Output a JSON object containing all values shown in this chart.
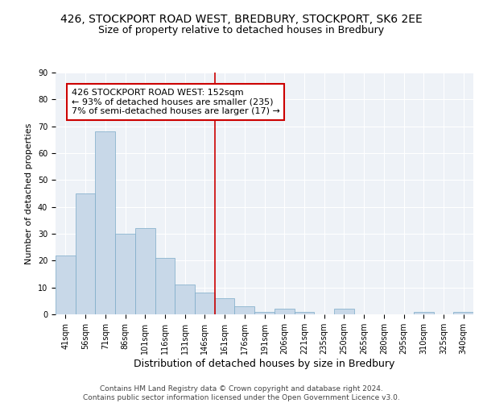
{
  "title1": "426, STOCKPORT ROAD WEST, BREDBURY, STOCKPORT, SK6 2EE",
  "title2": "Size of property relative to detached houses in Bredbury",
  "xlabel": "Distribution of detached houses by size in Bredbury",
  "ylabel": "Number of detached properties",
  "bar_color": "#c8d8e8",
  "bar_edge_color": "#7aaac8",
  "bar_labels": [
    "41sqm",
    "56sqm",
    "71sqm",
    "86sqm",
    "101sqm",
    "116sqm",
    "131sqm",
    "146sqm",
    "161sqm",
    "176sqm",
    "191sqm",
    "206sqm",
    "221sqm",
    "235sqm",
    "250sqm",
    "265sqm",
    "280sqm",
    "295sqm",
    "310sqm",
    "325sqm",
    "340sqm"
  ],
  "bar_values": [
    22,
    45,
    68,
    30,
    32,
    21,
    11,
    8,
    6,
    3,
    1,
    2,
    1,
    0,
    2,
    0,
    0,
    0,
    1,
    0,
    1
  ],
  "bar_width": 1.0,
  "vline_x": 7.5,
  "vline_color": "#cc0000",
  "ylim": [
    0,
    90
  ],
  "yticks": [
    0,
    10,
    20,
    30,
    40,
    50,
    60,
    70,
    80,
    90
  ],
  "annotation_text": "426 STOCKPORT ROAD WEST: 152sqm\n← 93% of detached houses are smaller (235)\n7% of semi-detached houses are larger (17) →",
  "annotation_box_color": "#ffffff",
  "annotation_box_edge": "#cc0000",
  "footer_text": "Contains HM Land Registry data © Crown copyright and database right 2024.\nContains public sector information licensed under the Open Government Licence v3.0.",
  "background_color": "#eef2f7",
  "grid_color": "#ffffff",
  "title1_fontsize": 10,
  "title2_fontsize": 9,
  "xlabel_fontsize": 9,
  "ylabel_fontsize": 8,
  "tick_fontsize": 7,
  "annot_fontsize": 8,
  "footer_fontsize": 6.5
}
